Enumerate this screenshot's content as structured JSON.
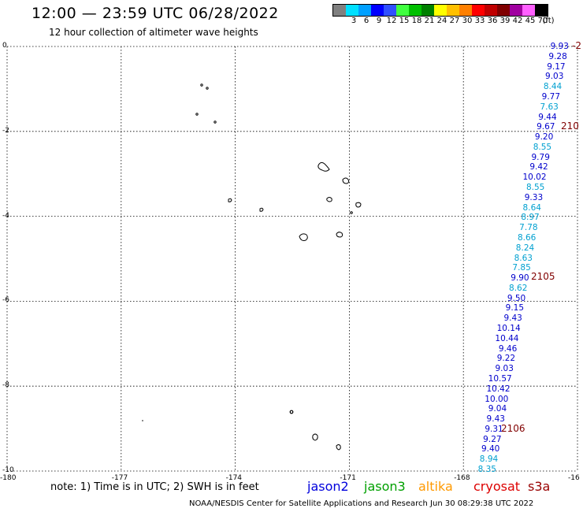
{
  "header": {
    "title": "12:00 — 23:59 UTC 06/28/2022",
    "subtitle": "12 hour collection of altimeter wave heights"
  },
  "color_scale": {
    "unit": "(ft)",
    "levels": [
      {
        "label": "",
        "color": "#808080"
      },
      {
        "label": "3",
        "color": "#00e0ff"
      },
      {
        "label": "6",
        "color": "#00a0ff"
      },
      {
        "label": "9",
        "color": "#0000ff"
      },
      {
        "label": "12",
        "color": "#3050ff"
      },
      {
        "label": "15",
        "color": "#40ff40"
      },
      {
        "label": "18",
        "color": "#00c000"
      },
      {
        "label": "21",
        "color": "#008000"
      },
      {
        "label": "24",
        "color": "#ffff00"
      },
      {
        "label": "27",
        "color": "#ffc000"
      },
      {
        "label": "30",
        "color": "#ff8000"
      },
      {
        "label": "33",
        "color": "#ff0000"
      },
      {
        "label": "36",
        "color": "#c00000"
      },
      {
        "label": "39",
        "color": "#800000"
      },
      {
        "label": "42",
        "color": "#a000a0"
      },
      {
        "label": "45",
        "color": "#ff60ff"
      },
      {
        "label": "70",
        "color": "#000000"
      }
    ]
  },
  "map": {
    "lat_range": [
      -10,
      0
    ],
    "lon_range": [
      -180,
      -165
    ],
    "y_ticks": [
      "0",
      "-2",
      "-4",
      "-6",
      "-8",
      "-10"
    ],
    "x_ticks": [
      "-180",
      "-177",
      "-174",
      "-171",
      "-168",
      "-16"
    ]
  },
  "track": {
    "observations": [
      {
        "v": "9.93",
        "c": "#0000cc"
      },
      {
        "v": "9.28",
        "c": "#0000cc"
      },
      {
        "v": "9.17",
        "c": "#0000cc"
      },
      {
        "v": "9.03",
        "c": "#0000cc"
      },
      {
        "v": "8.44",
        "c": "#00a0d0"
      },
      {
        "v": "9.77",
        "c": "#0000cc"
      },
      {
        "v": "7.63",
        "c": "#00a0d0"
      },
      {
        "v": "9.44",
        "c": "#0000cc"
      },
      {
        "v": "9.67",
        "c": "#0000cc"
      },
      {
        "v": "9.20",
        "c": "#0000cc"
      },
      {
        "v": "8.55",
        "c": "#00a0d0"
      },
      {
        "v": "9.79",
        "c": "#0000cc"
      },
      {
        "v": "9.42",
        "c": "#0000cc"
      },
      {
        "v": "10.02",
        "c": "#0000cc"
      },
      {
        "v": "8.55",
        "c": "#00a0d0"
      },
      {
        "v": "9.33",
        "c": "#0000cc"
      },
      {
        "v": "8.64",
        "c": "#00a0d0"
      },
      {
        "v": "8.97",
        "c": "#00a0d0"
      },
      {
        "v": "7.78",
        "c": "#00a0d0"
      },
      {
        "v": "8.66",
        "c": "#00a0d0"
      },
      {
        "v": "8.24",
        "c": "#00a0d0"
      },
      {
        "v": "8.63",
        "c": "#00a0d0"
      },
      {
        "v": "7.85",
        "c": "#00a0d0"
      },
      {
        "v": "9.90",
        "c": "#0000cc"
      },
      {
        "v": "8.62",
        "c": "#00a0d0"
      },
      {
        "v": "9.50",
        "c": "#0000cc"
      },
      {
        "v": "9.15",
        "c": "#0000cc"
      },
      {
        "v": "9.43",
        "c": "#0000cc"
      },
      {
        "v": "10.14",
        "c": "#0000cc"
      },
      {
        "v": "10.44",
        "c": "#0000cc"
      },
      {
        "v": "9.46",
        "c": "#0000cc"
      },
      {
        "v": "9.22",
        "c": "#0000cc"
      },
      {
        "v": "9.03",
        "c": "#0000cc"
      },
      {
        "v": "10.57",
        "c": "#0000cc"
      },
      {
        "v": "10.42",
        "c": "#0000cc"
      },
      {
        "v": "10.00",
        "c": "#0000cc"
      },
      {
        "v": "9.04",
        "c": "#0000cc"
      },
      {
        "v": "9.43",
        "c": "#0000cc"
      },
      {
        "v": "9.31",
        "c": "#0000cc"
      },
      {
        "v": "9.27",
        "c": "#0000cc"
      },
      {
        "v": "9.40",
        "c": "#0000cc"
      },
      {
        "v": "8.94",
        "c": "#00a0d0"
      },
      {
        "v": "8.35",
        "c": "#00a0d0"
      }
    ],
    "pass_times": [
      "-2",
      "210",
      "2105",
      "2106"
    ]
  },
  "footer": {
    "note": "note:  1) Time is in UTC;  2) SWH is in feet",
    "legend": [
      {
        "label": "jason2",
        "color": "#0000dd"
      },
      {
        "label": "jason3",
        "color": "#00a000"
      },
      {
        "label": "altika",
        "color": "#ff9900"
      },
      {
        "label": "cryosat",
        "color": "#dd0000"
      },
      {
        "label": "s3a",
        "color": "#990000"
      }
    ],
    "credit": "NOAA/NESDIS Center for Satellite Applications and Research     Jun 30 08:29:38 UTC 2022"
  }
}
